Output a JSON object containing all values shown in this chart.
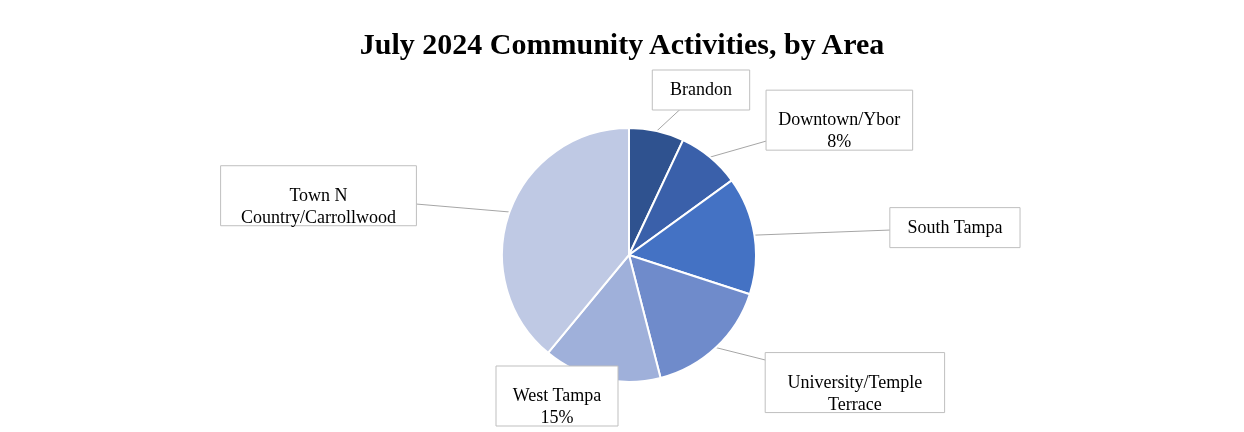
{
  "chart_data": {
    "type": "pie",
    "title": "July 2024 Community Activities, by Area",
    "categories": [
      "Brandon",
      "Downtown/Ybor",
      "South Tampa",
      "University/Temple Terrace",
      "West Tampa",
      "Town N Country/Carrollwood"
    ],
    "values": [
      7,
      8,
      15,
      16,
      15,
      39
    ],
    "value_labels": [
      null,
      "8%",
      null,
      null,
      "15%",
      null
    ],
    "colors": [
      "#2f528f",
      "#3a60aa",
      "#4472c4",
      "#6f8bcb",
      "#9fb0da",
      "#bfc9e4"
    ]
  }
}
